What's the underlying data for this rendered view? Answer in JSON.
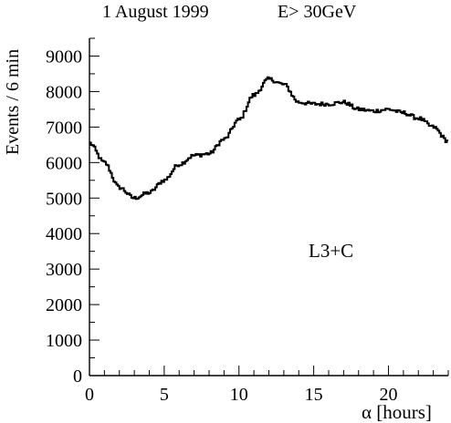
{
  "header": {
    "date": "1 August 1999",
    "energy_cut": "E> 30GeV"
  },
  "colors": {
    "axis": "#000000",
    "line": "#000000",
    "background": "#ffffff"
  },
  "chart_data": {
    "type": "line",
    "style": "step histogram",
    "title": "",
    "xlabel": "α [hours]",
    "ylabel": "Events / 6 min",
    "annotation": "L3+C",
    "xlim": [
      0,
      24
    ],
    "ylim": [
      0,
      9500
    ],
    "x_ticks": [
      0,
      5,
      10,
      15,
      20
    ],
    "y_ticks": [
      0,
      1000,
      2000,
      3000,
      4000,
      5000,
      6000,
      7000,
      8000,
      9000
    ],
    "x_minor_step": 1,
    "y_minor_step": 500,
    "bin_width": 0.1,
    "grid": false,
    "legend": "none",
    "x": [
      0,
      1,
      2,
      3,
      4,
      5,
      6,
      7,
      8,
      9,
      10,
      11,
      12,
      13,
      14,
      15,
      16,
      17,
      18,
      19,
      20,
      21,
      22,
      23,
      24
    ],
    "series": [
      {
        "values": [
          6550,
          6000,
          5300,
          5000,
          5150,
          5500,
          5950,
          6200,
          6250,
          6650,
          7200,
          7900,
          8350,
          8200,
          7700,
          7650,
          7650,
          7700,
          7500,
          7450,
          7500,
          7400,
          7250,
          7000,
          6600
        ]
      }
    ]
  }
}
